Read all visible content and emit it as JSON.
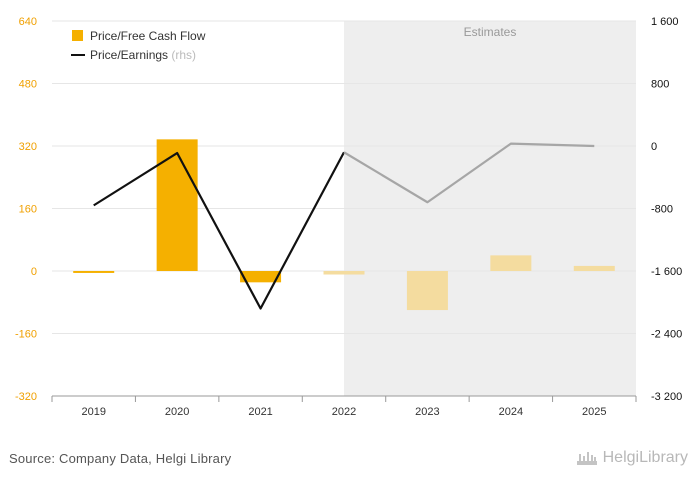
{
  "chart_data": {
    "type": "bar",
    "categories": [
      "2019",
      "2020",
      "2021",
      "2022",
      "2023",
      "2024",
      "2025"
    ],
    "estimates_label": "Estimates",
    "estimate_start_index": 3,
    "series": [
      {
        "name": "Price/Free Cash Flow",
        "type": "bar",
        "axis": "left",
        "color": "#f5b000",
        "estimate_color": "#f4dc9f",
        "values": [
          -5,
          337,
          -29,
          -9,
          -100,
          40,
          13
        ]
      },
      {
        "name": "Price/Earnings",
        "name_suffix": "(rhs)",
        "type": "line",
        "axis": "right",
        "color": "#111111",
        "estimate_color": "#a6a6a6",
        "values": [
          -760,
          -90,
          -2080,
          -80,
          -720,
          30,
          0
        ]
      }
    ],
    "y_left": {
      "min": -320,
      "max": 640,
      "ticks": [
        640,
        480,
        320,
        160,
        0,
        -160,
        -320
      ],
      "tick_labels": [
        "640",
        "480",
        "320",
        "160",
        "0",
        "-160",
        "-320"
      ]
    },
    "y_right": {
      "min": -3200,
      "max": 1600,
      "ticks": [
        1600,
        800,
        0,
        -800,
        -1600,
        -2400,
        -3200
      ],
      "tick_labels": [
        "1 600",
        "800",
        "0",
        "-800",
        "-1 600",
        "-2 400",
        "-3 200"
      ]
    },
    "colors": {
      "left_axis_text": "#f0a000",
      "grid": "#e6e6e6",
      "estimate_band": "#eeeeee"
    }
  },
  "footer": {
    "source": "Source: Company Data, Helgi Library",
    "brand": "HelgiLibrary"
  }
}
